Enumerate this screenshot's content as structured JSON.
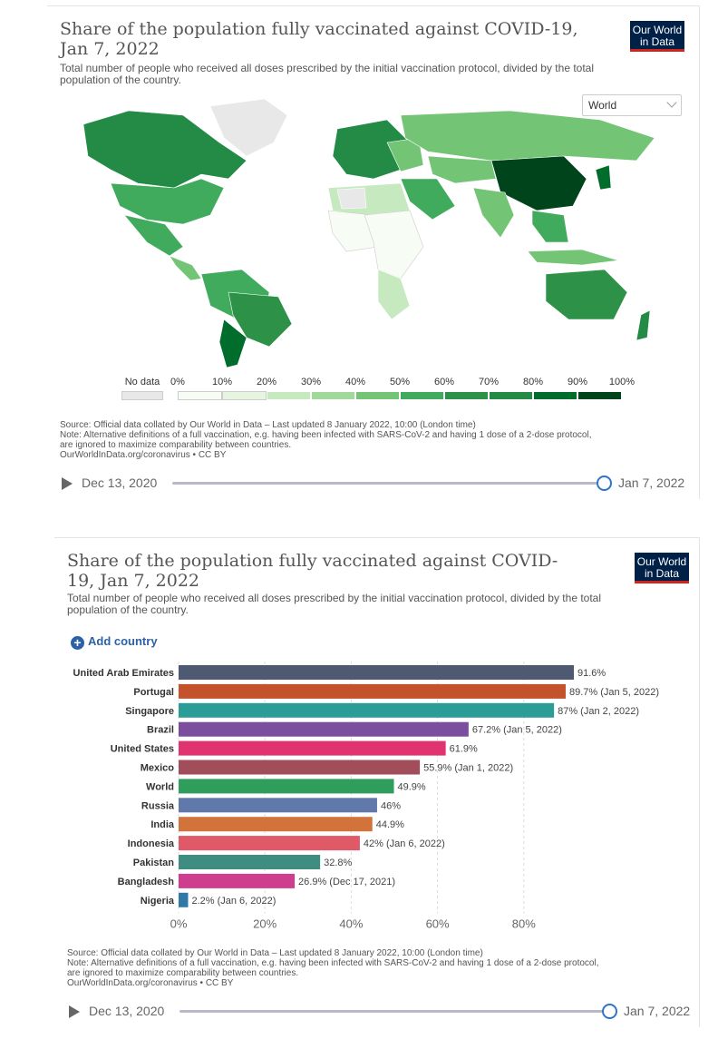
{
  "map_panel": {
    "title": "Share of the population fully vaccinated against COVID-19, Jan 7, 2022",
    "subtitle": "Total number of people who received all doses prescribed by the initial vaccination protocol, divided by the total population of the country.",
    "logo": "Our World in Data",
    "region_select": "World",
    "legend": {
      "no_data": "No data",
      "bins": [
        "0%",
        "10%",
        "20%",
        "30%",
        "40%",
        "50%",
        "60%",
        "70%",
        "80%",
        "90%",
        "100%"
      ],
      "colors": [
        "#f7fcf5",
        "#e5f5e0",
        "#c7e9c0",
        "#a1d99b",
        "#74c476",
        "#41ab5d",
        "#2e9148",
        "#238b45",
        "#006d2c",
        "#00441b"
      ],
      "no_data_color": "#e8e8e8"
    },
    "source_line1": "Source: Official data collated by Our World in Data – Last updated 8 January 2022, 10:00 (London time)",
    "source_line2": "Note: Alternative definitions of a full vaccination, e.g. having been infected with SARS-CoV-2 and having 1 dose of a 2-dose protocol,",
    "source_line3": "are ignored to maximize comparability between countries.",
    "source_line4": "OurWorldInData.org/coronavirus • CC BY",
    "timeline_start": "Dec 13, 2020",
    "timeline_end": "Jan 7, 2022"
  },
  "bar_panel": {
    "title": "Share of the population fully vaccinated against COVID-19, Jan 7, 2022",
    "subtitle": "Total number of people who received all doses prescribed by the initial vaccination protocol, divided by the total population of the country.",
    "logo": "Our World in Data",
    "add_country": "Add country",
    "source_line1": "Source: Official data collated by Our World in Data – Last updated 8 January 2022, 10:00 (London time)",
    "source_line2": "Note: Alternative definitions of a full vaccination, e.g. having been infected with SARS-CoV-2 and having 1 dose of a 2-dose protocol,",
    "source_line3": "are ignored to maximize comparability between countries.",
    "source_line4": "OurWorldInData.org/coronavirus • CC BY",
    "timeline_start": "Dec 13, 2020",
    "timeline_end": "Jan 7, 2022"
  },
  "chart_data": {
    "type": "bar",
    "orientation": "horizontal",
    "title": "Share of the population fully vaccinated against COVID-19, Jan 7, 2022",
    "categories": [
      "United Arab Emirates",
      "Portugal",
      "Singapore",
      "Brazil",
      "United States",
      "Mexico",
      "World",
      "Russia",
      "India",
      "Indonesia",
      "Pakistan",
      "Bangladesh",
      "Nigeria"
    ],
    "values": [
      91.6,
      89.7,
      87,
      67.2,
      61.9,
      55.9,
      49.9,
      46,
      44.9,
      42,
      32.8,
      26.9,
      2.2
    ],
    "value_labels": [
      "91.6%",
      "89.7% (Jan 5, 2022)",
      "87% (Jan 2, 2022)",
      "67.2% (Jan 5, 2022)",
      "61.9%",
      "55.9% (Jan 1, 2022)",
      "49.9%",
      "46%",
      "44.9%",
      "42% (Jan 6, 2022)",
      "32.8%",
      "26.9% (Dec 17, 2021)",
      "2.2% (Jan 6, 2022)"
    ],
    "colors": [
      "#4e5a72",
      "#c4532c",
      "#2a9d96",
      "#7b4f9e",
      "#e0336f",
      "#a14d5a",
      "#2f9e5c",
      "#6078aa",
      "#d2733b",
      "#e05966",
      "#3f8c80",
      "#cf3d8f",
      "#2f78a8"
    ],
    "x_ticks": [
      "0%",
      "20%",
      "40%",
      "60%",
      "80%"
    ],
    "xlim": [
      0,
      100
    ],
    "grid": true
  }
}
